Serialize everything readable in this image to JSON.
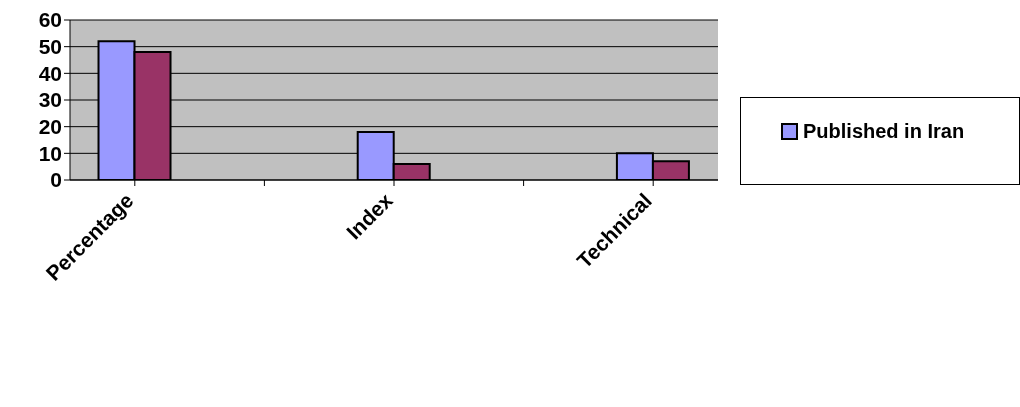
{
  "chart_data": {
    "type": "bar",
    "categories": [
      "Percentage",
      null,
      "Index",
      null,
      "Technical"
    ],
    "series": [
      {
        "name": "Published in Iran",
        "color": "#9999ff",
        "values": [
          52,
          null,
          18,
          null,
          10
        ]
      },
      {
        "color": "#993366",
        "values": [
          48,
          null,
          6,
          null,
          7
        ]
      }
    ],
    "ylim": [
      0,
      60
    ],
    "yticks": [
      0,
      10,
      20,
      30,
      40,
      50,
      60
    ],
    "grid": "y",
    "legend": "right"
  }
}
